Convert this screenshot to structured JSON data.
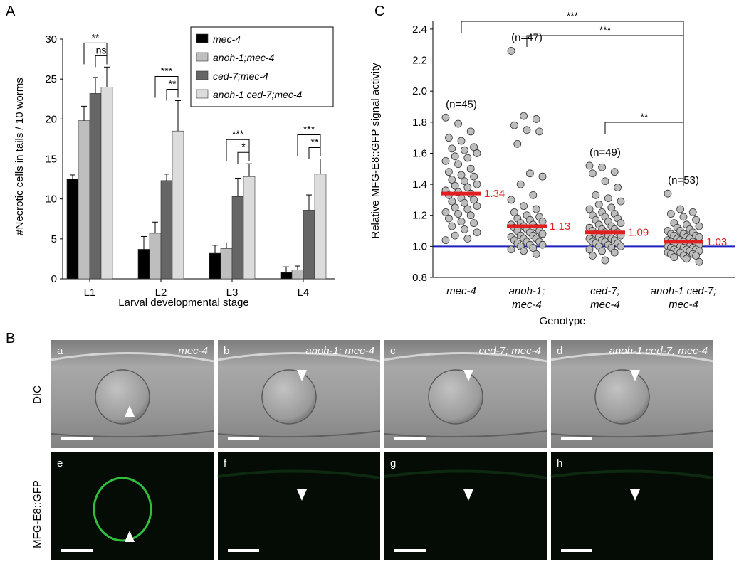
{
  "panel_labels": {
    "A": "A",
    "B": "B",
    "C": "C"
  },
  "chart_data": [
    {
      "type": "bar",
      "panel": "A",
      "xlabel": "Larval developmental stage",
      "ylabel": "#Necrotic cells in tails / 10 worms",
      "ylim": [
        0,
        30
      ],
      "yticks": [
        0,
        5,
        10,
        15,
        20,
        25,
        30
      ],
      "categories": [
        "L1",
        "L2",
        "L3",
        "L4"
      ],
      "legend_position": "top-right",
      "series": [
        {
          "name": "mec-4",
          "color": "#000000",
          "values": [
            12.5,
            3.7,
            3.2,
            0.8
          ],
          "errors": [
            0.5,
            1.6,
            1.0,
            0.7
          ]
        },
        {
          "name": "anoh-1;mec-4",
          "color": "#bebebe",
          "values": [
            19.8,
            5.7,
            3.8,
            1.1
          ],
          "errors": [
            1.8,
            1.4,
            0.7,
            0.5
          ]
        },
        {
          "name": "ced-7;mec-4",
          "color": "#666666",
          "values": [
            23.2,
            12.3,
            10.3,
            8.6
          ],
          "errors": [
            2.0,
            0.8,
            2.3,
            1.9
          ]
        },
        {
          "name": "anoh-1 ced-7;mec-4",
          "color": "#dcdcdc",
          "values": [
            24.0,
            18.5,
            12.8,
            13.1
          ],
          "errors": [
            2.5,
            3.8,
            1.6,
            1.9
          ]
        }
      ],
      "significance": [
        {
          "category": "L1",
          "from": 1,
          "to": 3,
          "label": "**"
        },
        {
          "category": "L1",
          "from": 2,
          "to": 3,
          "label": "ns"
        },
        {
          "category": "L2",
          "from": 1,
          "to": 3,
          "label": "***"
        },
        {
          "category": "L2",
          "from": 2,
          "to": 3,
          "label": "**"
        },
        {
          "category": "L3",
          "from": 1,
          "to": 3,
          "label": "***"
        },
        {
          "category": "L3",
          "from": 2,
          "to": 3,
          "label": "*"
        },
        {
          "category": "L4",
          "from": 1,
          "to": 3,
          "label": "***"
        },
        {
          "category": "L4",
          "from": 2,
          "to": 3,
          "label": "**"
        }
      ]
    },
    {
      "type": "scatter",
      "panel": "C",
      "xlabel": "Genotype",
      "ylabel": "Relative MFG-E8::GFP signal activity",
      "ylim": [
        0.8,
        2.45
      ],
      "yticks": [
        "0.8",
        "1.0",
        "1.2",
        "1.4",
        "1.6",
        "1.8",
        "2.0",
        "2.2",
        "2.4"
      ],
      "baseline": 1.0,
      "baseline_color": "#1f1fbf",
      "mean_color": "#e02020",
      "point_color": "#bdbdbd",
      "groups": [
        {
          "label_line1": "mec-4",
          "label_line2": "",
          "n_label": "(n=45)",
          "mean_label": "1.34",
          "mean": 1.34,
          "points": [
            1.83,
            1.79,
            1.74,
            1.7,
            1.68,
            1.64,
            1.63,
            1.62,
            1.6,
            1.58,
            1.57,
            1.55,
            1.53,
            1.5,
            1.48,
            1.46,
            1.45,
            1.43,
            1.42,
            1.4,
            1.39,
            1.38,
            1.36,
            1.35,
            1.34,
            1.33,
            1.31,
            1.3,
            1.29,
            1.28,
            1.26,
            1.25,
            1.24,
            1.22,
            1.21,
            1.2,
            1.18,
            1.16,
            1.15,
            1.13,
            1.11,
            1.09,
            1.07,
            1.05,
            1.04
          ]
        },
        {
          "label_line1": "anoh-1;",
          "label_line2": "mec-4",
          "n_label": "(n=47)",
          "mean_label": "1.13",
          "mean": 1.13,
          "points": [
            2.26,
            1.84,
            1.82,
            1.78,
            1.75,
            1.74,
            1.66,
            1.47,
            1.45,
            1.4,
            1.33,
            1.3,
            1.26,
            1.24,
            1.22,
            1.2,
            1.19,
            1.18,
            1.17,
            1.16,
            1.15,
            1.14,
            1.14,
            1.13,
            1.12,
            1.12,
            1.11,
            1.1,
            1.1,
            1.09,
            1.08,
            1.07,
            1.07,
            1.06,
            1.05,
            1.05,
            1.04,
            1.03,
            1.03,
            1.02,
            1.01,
            1.01,
            1.0,
            0.99,
            0.98,
            0.97,
            0.95
          ]
        },
        {
          "label_line1": "ced-7;",
          "label_line2": "mec-4",
          "n_label": "(n=49)",
          "mean_label": "1.09",
          "mean": 1.09,
          "points": [
            1.52,
            1.51,
            1.48,
            1.47,
            1.42,
            1.38,
            1.33,
            1.31,
            1.29,
            1.27,
            1.25,
            1.24,
            1.22,
            1.21,
            1.2,
            1.19,
            1.18,
            1.17,
            1.16,
            1.15,
            1.14,
            1.13,
            1.12,
            1.11,
            1.11,
            1.1,
            1.09,
            1.09,
            1.08,
            1.07,
            1.07,
            1.06,
            1.05,
            1.05,
            1.04,
            1.04,
            1.03,
            1.03,
            1.02,
            1.02,
            1.01,
            1.0,
            1.0,
            0.99,
            0.98,
            0.97,
            0.96,
            0.94,
            0.91
          ]
        },
        {
          "label_line1": "anoh-1 ced-7;",
          "label_line2": "mec-4",
          "n_label": "(n=53)",
          "mean_label": "1.03",
          "mean": 1.03,
          "points": [
            1.34,
            1.24,
            1.22,
            1.21,
            1.19,
            1.17,
            1.15,
            1.14,
            1.13,
            1.12,
            1.11,
            1.1,
            1.1,
            1.09,
            1.08,
            1.08,
            1.07,
            1.07,
            1.06,
            1.06,
            1.05,
            1.05,
            1.04,
            1.04,
            1.03,
            1.03,
            1.03,
            1.02,
            1.02,
            1.02,
            1.01,
            1.01,
            1.0,
            1.0,
            1.0,
            0.99,
            0.99,
            0.99,
            0.98,
            0.98,
            0.98,
            0.97,
            0.97,
            0.97,
            0.96,
            0.96,
            0.95,
            0.95,
            0.94,
            0.94,
            0.93,
            0.92,
            0.9
          ]
        }
      ],
      "significance": [
        {
          "from": 0,
          "to": 3,
          "label": "***"
        },
        {
          "from": 1,
          "to": 3,
          "label": "***"
        },
        {
          "from": 2,
          "to": 3,
          "label": "**"
        }
      ]
    }
  ],
  "micrographs": {
    "rows": [
      {
        "label": "DIC",
        "tone": "dic"
      },
      {
        "label": "MFG-E8::GFP",
        "tone": "gfp"
      }
    ],
    "panels": [
      {
        "letter": "a",
        "title": "mec-4"
      },
      {
        "letter": "b",
        "title": "anoh-1; mec-4"
      },
      {
        "letter": "c",
        "title": "ced-7; mec-4"
      },
      {
        "letter": "d",
        "title": "anoh-1 ced-7; mec-4"
      },
      {
        "letter": "e",
        "title": ""
      },
      {
        "letter": "f",
        "title": ""
      },
      {
        "letter": "g",
        "title": ""
      },
      {
        "letter": "h",
        "title": ""
      }
    ]
  }
}
